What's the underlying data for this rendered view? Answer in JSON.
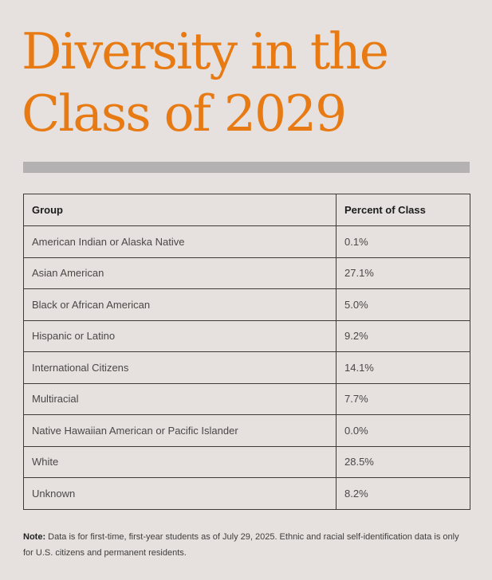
{
  "title": {
    "line1": "Diversity in the",
    "line2": "Class of 2029"
  },
  "colors": {
    "title": "#e77a12",
    "background": "#e6e1de",
    "rule": "#b3b1b1"
  },
  "table": {
    "headers": [
      "Group",
      "Percent of Class"
    ],
    "rows": [
      {
        "group": "American Indian or Alaska Native",
        "percent": "0.1%"
      },
      {
        "group": "Asian American",
        "percent": "27.1%"
      },
      {
        "group": "Black or African American",
        "percent": "5.0%"
      },
      {
        "group": "Hispanic or Latino",
        "percent": "9.2%"
      },
      {
        "group": "International Citizens",
        "percent": "14.1%"
      },
      {
        "group": "Multiracial",
        "percent": "7.7%"
      },
      {
        "group": "Native Hawaiian American or Pacific Islander",
        "percent": "0.0%"
      },
      {
        "group": "White",
        "percent": "28.5%"
      },
      {
        "group": "Unknown",
        "percent": "8.2%"
      }
    ]
  },
  "note": {
    "label": "Note:",
    "text": " Data is for first-time, first-year students as of July 29, 2025. Ethnic and racial self-identification data is only for U.S. citizens and permanent residents."
  }
}
